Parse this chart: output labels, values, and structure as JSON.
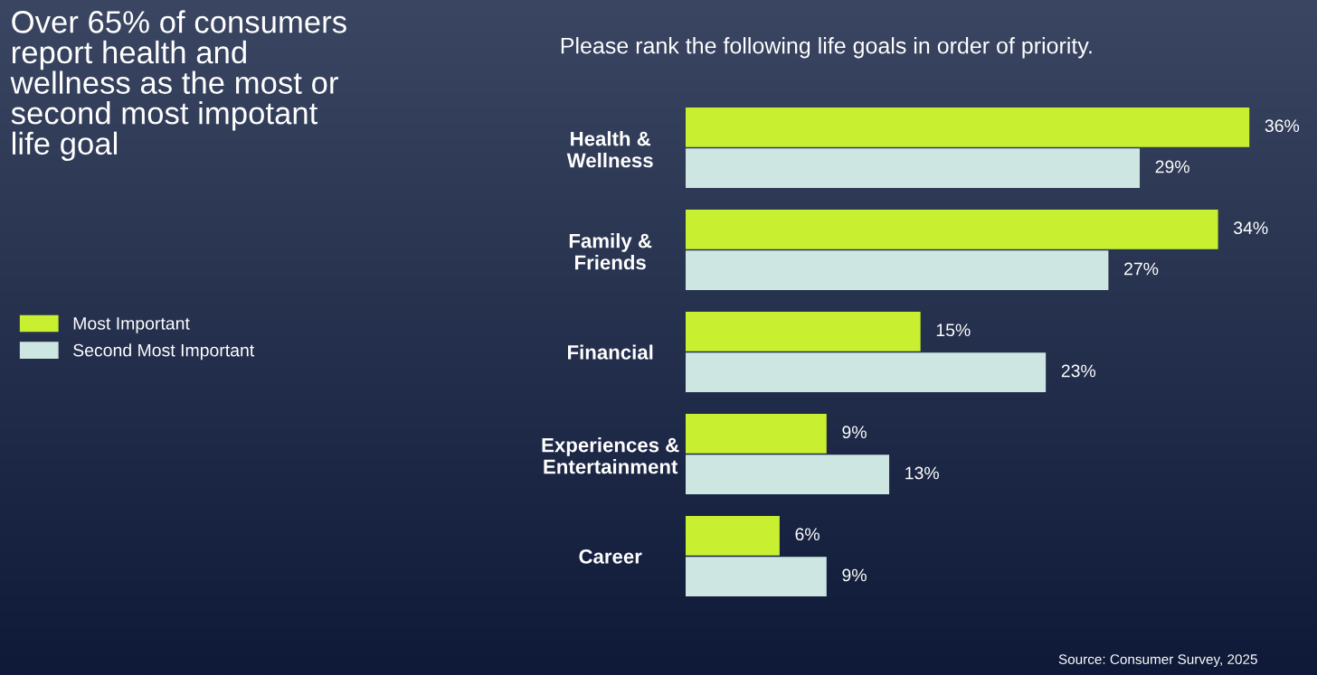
{
  "chart_data": {
    "type": "bar",
    "orientation": "horizontal",
    "title": "Over 65% of consumers\nreport health and\nwellness as the most or\nsecond most impotant\nlife goal",
    "subtitle": "Please rank the following life goals in order of priority.",
    "categories": [
      "Health &\nWellness",
      "Family &\nFriends",
      "Financial",
      "Experiences &\nEntertainment",
      "Career"
    ],
    "series": [
      {
        "name": "Most Important",
        "color": "#c8f031",
        "values": [
          36,
          34,
          15,
          9,
          6
        ],
        "value_labels": [
          "36%",
          "34%",
          "15%",
          "9%",
          "6%"
        ]
      },
      {
        "name": "Second Most Important",
        "color": "#cde6e1",
        "values": [
          29,
          27,
          23,
          13,
          9
        ],
        "value_labels": [
          "29%",
          "27%",
          "23%",
          "13%",
          "9%"
        ]
      }
    ],
    "legend": "left",
    "grid": false,
    "annotations": [
      "Source: Consumer Survey, 2025"
    ]
  }
}
